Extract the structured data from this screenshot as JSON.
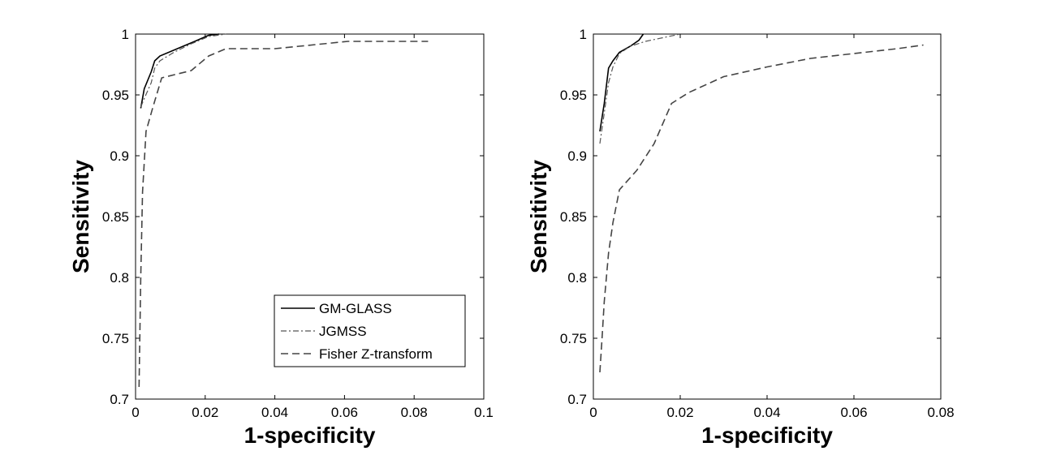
{
  "chart_data": [
    {
      "type": "line",
      "title": "",
      "xlabel": "1-specificity",
      "ylabel": "Sensitivity",
      "xlim": [
        0,
        0.1
      ],
      "ylim": [
        0.7,
        1
      ],
      "xticks": [
        0,
        0.02,
        0.04,
        0.06,
        0.08,
        0.1
      ],
      "xtick_labels": [
        "0",
        "0.02",
        "0.04",
        "0.06",
        "0.08",
        "0.1"
      ],
      "yticks": [
        0.7,
        0.75,
        0.8,
        0.85,
        0.9,
        0.95,
        1
      ],
      "ytick_labels": [
        "0.7",
        "0.75",
        "0.8",
        "0.85",
        "0.9",
        "0.95",
        "1"
      ],
      "legend": {
        "location": "lower-right",
        "entries": [
          "GM-GLASS",
          "JGMSS",
          "Fisher Z-transform"
        ]
      },
      "series": [
        {
          "name": "GM-GLASS",
          "style": "solid",
          "x": [
            0.0015,
            0.0025,
            0.0045,
            0.0055,
            0.007,
            0.012,
            0.017,
            0.021,
            0.024
          ],
          "y": [
            0.939,
            0.955,
            0.969,
            0.978,
            0.982,
            0.988,
            0.994,
            0.999,
            1.0
          ]
        },
        {
          "name": "JGMSS",
          "style": "dashdot",
          "x": [
            0.0015,
            0.0025,
            0.0045,
            0.0055,
            0.007,
            0.011,
            0.016,
            0.021,
            0.026
          ],
          "y": [
            0.94,
            0.947,
            0.96,
            0.972,
            0.978,
            0.985,
            0.992,
            0.998,
            1.0
          ]
        },
        {
          "name": "Fisher Z-transform",
          "style": "dashed",
          "x": [
            0.001,
            0.0015,
            0.002,
            0.003,
            0.005,
            0.0075,
            0.016,
            0.021,
            0.026,
            0.04,
            0.047,
            0.061,
            0.084
          ],
          "y": [
            0.71,
            0.8,
            0.87,
            0.92,
            0.94,
            0.964,
            0.97,
            0.982,
            0.988,
            0.988,
            0.99,
            0.994,
            0.994
          ]
        }
      ]
    },
    {
      "type": "line",
      "title": "",
      "xlabel": "1-specificity",
      "ylabel": "Sensitivity",
      "xlim": [
        0,
        0.08
      ],
      "ylim": [
        0.7,
        1
      ],
      "xticks": [
        0,
        0.02,
        0.04,
        0.06,
        0.08
      ],
      "xtick_labels": [
        "0",
        "0.02",
        "0.04",
        "0.06",
        "0.08"
      ],
      "yticks": [
        0.7,
        0.75,
        0.8,
        0.85,
        0.9,
        0.95,
        1
      ],
      "ytick_labels": [
        "0.7",
        "0.75",
        "0.8",
        "0.85",
        "0.9",
        "0.95",
        "1"
      ],
      "series": [
        {
          "name": "GM-GLASS",
          "style": "solid",
          "x": [
            0.0015,
            0.0025,
            0.0035,
            0.0045,
            0.006,
            0.0085,
            0.0105,
            0.0115
          ],
          "y": [
            0.92,
            0.943,
            0.972,
            0.978,
            0.985,
            0.99,
            0.995,
            1.0
          ]
        },
        {
          "name": "JGMSS",
          "style": "dashdot",
          "x": [
            0.0015,
            0.0025,
            0.0035,
            0.0045,
            0.006,
            0.0085,
            0.012,
            0.016,
            0.02
          ],
          "y": [
            0.91,
            0.935,
            0.96,
            0.973,
            0.984,
            0.99,
            0.994,
            0.997,
            1.0
          ]
        },
        {
          "name": "Fisher Z-transform",
          "style": "dashed",
          "x": [
            0.0015,
            0.002,
            0.0025,
            0.0035,
            0.0045,
            0.006,
            0.01,
            0.014,
            0.018,
            0.022,
            0.03,
            0.04,
            0.05,
            0.06,
            0.07,
            0.076
          ],
          "y": [
            0.722,
            0.75,
            0.78,
            0.82,
            0.845,
            0.872,
            0.888,
            0.91,
            0.943,
            0.952,
            0.965,
            0.973,
            0.98,
            0.984,
            0.988,
            0.991
          ]
        }
      ]
    }
  ]
}
